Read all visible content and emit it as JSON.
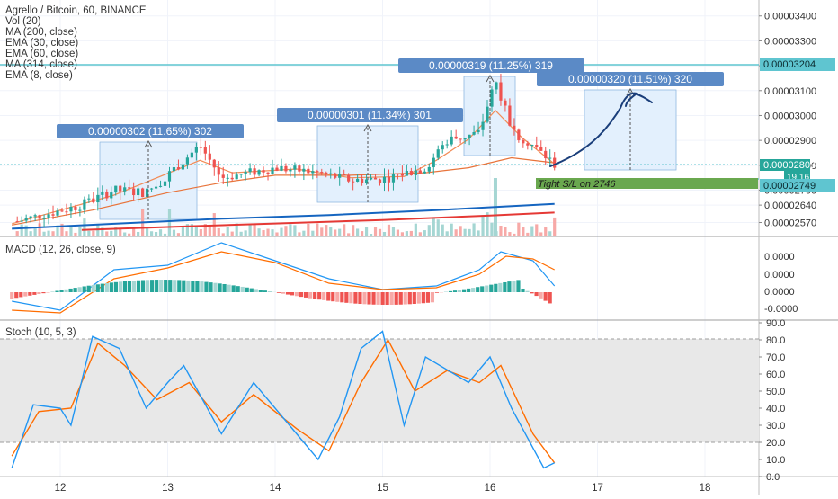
{
  "header": {
    "symbol_line": "Agrello / Bitcoin, 60, BINANCE",
    "indicators": [
      "Vol (20)",
      "MA (200, close)",
      "EMA (30, close)",
      "EMA (60, close)",
      "MA (314, close)",
      "EMA (8, close)"
    ]
  },
  "colors": {
    "up": "#26a69a",
    "down": "#ef5350",
    "up_light": "#a5d6d3",
    "down_light": "#f7a9a7",
    "ma200": "#2962a8",
    "ema30": "#e8743b",
    "ema60": "#1565c0",
    "ma314": "#e53935",
    "ema8": "#f28c57",
    "macd_line": "#2196f3",
    "signal_line": "#ff6d00",
    "stoch_k": "#2196f3",
    "stoch_d": "#ff6d00",
    "box_fill": "#e3f0fd",
    "label_bg": "#5b8ac6",
    "hline": "#5fc5d0",
    "sl_green": "#6aa84f",
    "drawing": "#1a3e7a"
  },
  "price_axis": {
    "ticks": [
      "0.00003400",
      "0.00003300",
      "0.00003200",
      "0.00003100",
      "0.00003000",
      "0.00002900",
      "0.00002800",
      "0.00002700",
      "0.00002640",
      "0.00002570"
    ],
    "tick_values": [
      3400,
      3300,
      3200,
      3100,
      3000,
      2900,
      2800,
      2700,
      2640,
      2570
    ],
    "badges": {
      "resistance": "0.00003204",
      "last_price": "0.00002803",
      "countdown": "19:16",
      "stop": "0.00002749"
    }
  },
  "macd_panel": {
    "title": "MACD (12, 26, close, 9)",
    "ticks": [
      "0.0000",
      "0.0000",
      "0.0000",
      "-0.0000"
    ]
  },
  "stoch_panel": {
    "title": "Stoch (10, 5, 3)",
    "ticks": [
      "90.0",
      "80.0",
      "70.0",
      "60.0",
      "50.0",
      "40.0",
      "30.0",
      "20.0",
      "10.0",
      "0.0"
    ]
  },
  "time_axis": [
    "12",
    "13",
    "14",
    "15",
    "16",
    "17",
    "18"
  ],
  "annotations": {
    "box1_label": "0.00000302 (11.65%) 302",
    "box2_label": "0.00000301 (11.34%) 301",
    "box3_label": "0.00000319 (11.25%) 319",
    "box4_label": "0.00000320 (11.51%) 320",
    "stop_label": "Tight S/L on 2746"
  },
  "chart_data": {
    "type": "candlestick",
    "symbol": "Agrello / Bitcoin",
    "interval": "60",
    "exchange": "BINANCE",
    "price_scale": "satoshi (x 0.00000001 BTC)",
    "x_axis_days": [
      "12",
      "13",
      "14",
      "15",
      "16",
      "17",
      "18"
    ],
    "price_ylim": [
      2540,
      3440
    ],
    "resistance_level": 3204,
    "last_price": 2803,
    "stop_level": 2749,
    "measure_boxes": [
      {
        "label": "0.00000302 (11.65%) 302",
        "from": 2600,
        "to": 2902
      },
      {
        "label": "0.00000301 (11.34%) 301",
        "from": 2660,
        "to": 2961
      },
      {
        "label": "0.00000319 (11.25%) 319",
        "from": 2835,
        "to": 3154
      },
      {
        "label": "0.00000320 (11.51%) 320",
        "from": 2780,
        "to": 3100
      }
    ],
    "price_key_points": [
      {
        "day": 11.6,
        "price": 2575
      },
      {
        "day": 12.2,
        "price": 2640
      },
      {
        "day": 12.5,
        "price": 2700
      },
      {
        "day": 12.8,
        "price": 2690
      },
      {
        "day": 13.0,
        "price": 2760
      },
      {
        "day": 13.3,
        "price": 2880
      },
      {
        "day": 13.5,
        "price": 2750
      },
      {
        "day": 14.0,
        "price": 2790
      },
      {
        "day": 14.4,
        "price": 2770
      },
      {
        "day": 14.7,
        "price": 2740
      },
      {
        "day": 15.0,
        "price": 2745
      },
      {
        "day": 15.4,
        "price": 2790
      },
      {
        "day": 15.6,
        "price": 2900
      },
      {
        "day": 15.9,
        "price": 2930
      },
      {
        "day": 16.05,
        "price": 3150
      },
      {
        "day": 16.2,
        "price": 2940
      },
      {
        "day": 16.4,
        "price": 2880
      },
      {
        "day": 16.6,
        "price": 2803
      }
    ],
    "stoch_ylim": [
      0,
      90
    ],
    "stoch_band": [
      20,
      80
    ],
    "stoch_k_key_points": [
      {
        "day": 11.55,
        "k": 5
      },
      {
        "day": 11.75,
        "k": 42
      },
      {
        "day": 12.0,
        "k": 40
      },
      {
        "day": 12.1,
        "k": 30
      },
      {
        "day": 12.3,
        "k": 82
      },
      {
        "day": 12.55,
        "k": 75
      },
      {
        "day": 12.8,
        "k": 40
      },
      {
        "day": 13.0,
        "k": 55
      },
      {
        "day": 13.15,
        "k": 65
      },
      {
        "day": 13.5,
        "k": 25
      },
      {
        "day": 13.8,
        "k": 55
      },
      {
        "day": 14.2,
        "k": 25
      },
      {
        "day": 14.4,
        "k": 10
      },
      {
        "day": 14.6,
        "k": 35
      },
      {
        "day": 14.8,
        "k": 75
      },
      {
        "day": 15.0,
        "k": 85
      },
      {
        "day": 15.2,
        "k": 30
      },
      {
        "day": 15.4,
        "k": 70
      },
      {
        "day": 15.8,
        "k": 55
      },
      {
        "day": 16.0,
        "k": 70
      },
      {
        "day": 16.2,
        "k": 40
      },
      {
        "day": 16.5,
        "k": 5
      },
      {
        "day": 16.6,
        "k": 8
      }
    ],
    "stoch_d_key_points": [
      {
        "day": 11.55,
        "d": 12
      },
      {
        "day": 11.8,
        "d": 38
      },
      {
        "day": 12.1,
        "d": 40
      },
      {
        "day": 12.35,
        "d": 78
      },
      {
        "day": 12.6,
        "d": 65
      },
      {
        "day": 12.9,
        "d": 45
      },
      {
        "day": 13.2,
        "d": 55
      },
      {
        "day": 13.5,
        "d": 32
      },
      {
        "day": 13.8,
        "d": 48
      },
      {
        "day": 14.2,
        "d": 28
      },
      {
        "day": 14.5,
        "d": 15
      },
      {
        "day": 14.8,
        "d": 55
      },
      {
        "day": 15.05,
        "d": 80
      },
      {
        "day": 15.3,
        "d": 50
      },
      {
        "day": 15.6,
        "d": 62
      },
      {
        "day": 15.9,
        "d": 55
      },
      {
        "day": 16.1,
        "d": 65
      },
      {
        "day": 16.4,
        "d": 25
      },
      {
        "day": 16.6,
        "d": 8
      }
    ]
  }
}
